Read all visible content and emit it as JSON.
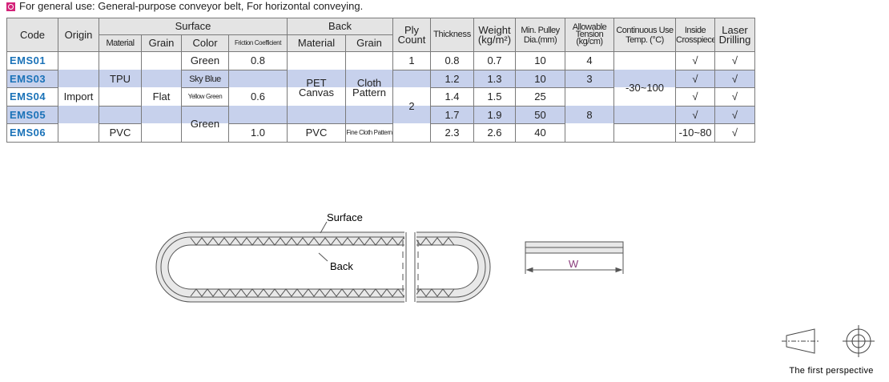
{
  "note": "For general use: General-purpose conveyor belt, For horizontal conveying.",
  "table": {
    "header": [
      [
        "Code",
        "Origin",
        "Surface",
        "Back",
        "Ply\nCount",
        "Thickness",
        "Weight\n(kg/m²)",
        "Min. Pulley\nDia.(mm)",
        "Allowable\nTension\n(kg/cm)",
        "Continuous Use\nTemp. (°C)",
        "Inside\nCrosspiece",
        "Laser\nDrilling"
      ],
      [
        "Material",
        "Grain",
        "Color",
        "Friction Coefficient",
        "Material",
        "Grain"
      ]
    ],
    "rows": [
      [
        "EMS01",
        "Import",
        "TPU",
        "Flat",
        "Green",
        "0.8",
        "PET\nCanvas",
        "Cloth\nPattern",
        "1",
        "0.8",
        "0.7",
        "10",
        "4",
        "-30~100",
        "√",
        "√"
      ],
      [
        "EMS03",
        "Sky Blue",
        "0.6",
        "2",
        "1.2",
        "1.3",
        "10",
        "3",
        "√",
        "√"
      ],
      [
        "EMS04",
        "Yellow Green",
        "1.4",
        "1.5",
        "25",
        "8",
        "√",
        "√"
      ],
      [
        "EMS05",
        "Green",
        "1.7",
        "1.9",
        "50",
        "√",
        "√"
      ],
      [
        "EMS06",
        "PVC",
        "1.0",
        "PVC",
        "Fine Cloth Pattern",
        "2.3",
        "2.6",
        "40",
        "-10~80",
        "√",
        "√"
      ]
    ]
  },
  "diagram": {
    "surface": "Surface",
    "back": "Back",
    "width": "W",
    "perspective": "The first perspective"
  }
}
